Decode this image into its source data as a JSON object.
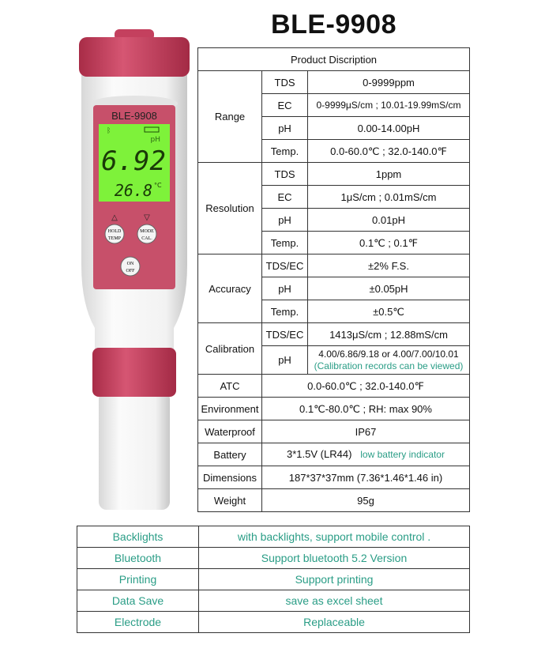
{
  "title": "BLE-9908",
  "device": {
    "model_label": "BLE-9908",
    "reading": "6.92",
    "unit": "pH",
    "temperature": "26.8",
    "temp_unit": "°C",
    "buttons": {
      "hold": "HOLD",
      "temp": "TEMP",
      "mode": "MODE",
      "cal": "CAL.",
      "on": "ON",
      "off": "OFF"
    },
    "colors": {
      "body_pink": "#c4405e",
      "lcd_green": "#7ef23a"
    }
  },
  "spec": {
    "header": "Product Discription",
    "range": {
      "label": "Range",
      "rows": [
        {
          "k": "TDS",
          "v": "0-9999ppm"
        },
        {
          "k": "EC",
          "v": "0-9999μS/cm ; 10.01-19.99mS/cm"
        },
        {
          "k": "pH",
          "v": "0.00-14.00pH"
        },
        {
          "k": "Temp.",
          "v": "0.0-60.0℃ ; 32.0-140.0℉"
        }
      ]
    },
    "resolution": {
      "label": "Resolution",
      "rows": [
        {
          "k": "TDS",
          "v": "1ppm"
        },
        {
          "k": "EC",
          "v": "1μS/cm  ;  0.01mS/cm"
        },
        {
          "k": "pH",
          "v": "0.01pH"
        },
        {
          "k": "Temp.",
          "v": "0.1℃ ; 0.1℉"
        }
      ]
    },
    "accuracy": {
      "label": "Accuracy",
      "rows": [
        {
          "k": "TDS/EC",
          "v": "±2% F.S."
        },
        {
          "k": "pH",
          "v": "±0.05pH"
        },
        {
          "k": "Temp.",
          "v": "±0.5℃"
        }
      ]
    },
    "calibration": {
      "label": "Calibration",
      "rows": [
        {
          "k": "TDS/EC",
          "v": "1413μS/cm  ;   12.88mS/cm"
        },
        {
          "k": "pH",
          "v": "4.00/6.86/9.18 or 4.00/7.00/10.01",
          "note": "(Calibration records can be viewed)"
        }
      ]
    },
    "atc": {
      "label": "ATC",
      "v": "0.0-60.0℃ ; 32.0-140.0℉"
    },
    "environment": {
      "label": "Environment",
      "v": "0.1℃-80.0℃ ; RH: max 90%"
    },
    "waterproof": {
      "label": "Waterproof",
      "v": "IP67"
    },
    "battery": {
      "label": "Battery",
      "v": "3*1.5V (LR44)",
      "note": "low battery indicator"
    },
    "dimensions": {
      "label": "Dimensions",
      "v": "187*37*37mm  (7.36*1.46*1.46 in)"
    },
    "weight": {
      "label": "Weight",
      "v": "95g"
    }
  },
  "features": [
    {
      "k": "Backlights",
      "v": "with backlights, support mobile control ."
    },
    {
      "k": "Bluetooth",
      "v": "Support bluetooth 5.2 Version"
    },
    {
      "k": "Printing",
      "v": "Support  printing"
    },
    {
      "k": "Data Save",
      "v": "save as excel sheet"
    },
    {
      "k": "Electrode",
      "v": "Replaceable"
    }
  ]
}
